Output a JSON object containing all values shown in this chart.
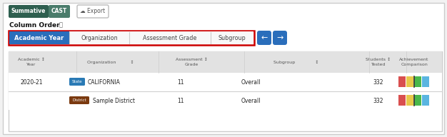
{
  "bg_color": "#f2f2f2",
  "widget_bg": "#ffffff",
  "btn_summative_bg": "#2e5f4f",
  "btn_cast_bg": "#4a7c6b",
  "btn_export_bg": "#ffffff",
  "btn_export_border": "#bbbbbb",
  "column_order_label": "Column Order",
  "info_icon": "ⓘ",
  "tabs": [
    "Academic Year",
    "Organization",
    "Assessment Grade",
    "Subgroup"
  ],
  "active_tab_bg": "#2a6ebb",
  "active_tab_text": "#ffffff",
  "inactive_tab_bg": "#f8f8f8",
  "inactive_tab_text": "#444444",
  "tab_border_color": "#cc0000",
  "nav_arrow_bg": "#2a6ebb",
  "table_header_bg": "#e2e2e2",
  "row1": {
    "year": "2020-21",
    "badge_text": "State",
    "badge_bg": "#2a7ab5",
    "org": "CALIFORNIA",
    "grade": "11",
    "subgroup": "Overall",
    "tested": "332",
    "bar_colors": [
      "#d94f4f",
      "#e8c84a",
      "#4ab84a",
      "#5ab5e0"
    ]
  },
  "row2": {
    "year": "",
    "badge_text": "District",
    "badge_bg": "#7b3a10",
    "org": "Sample District",
    "grade": "11",
    "subgroup": "Overall",
    "tested": "332",
    "bar_colors": [
      "#d94f4f",
      "#e8c84a",
      "#4ab84a",
      "#5ab5e0"
    ]
  },
  "divider_color": "#d0d0d0",
  "table_border": "#cccccc"
}
